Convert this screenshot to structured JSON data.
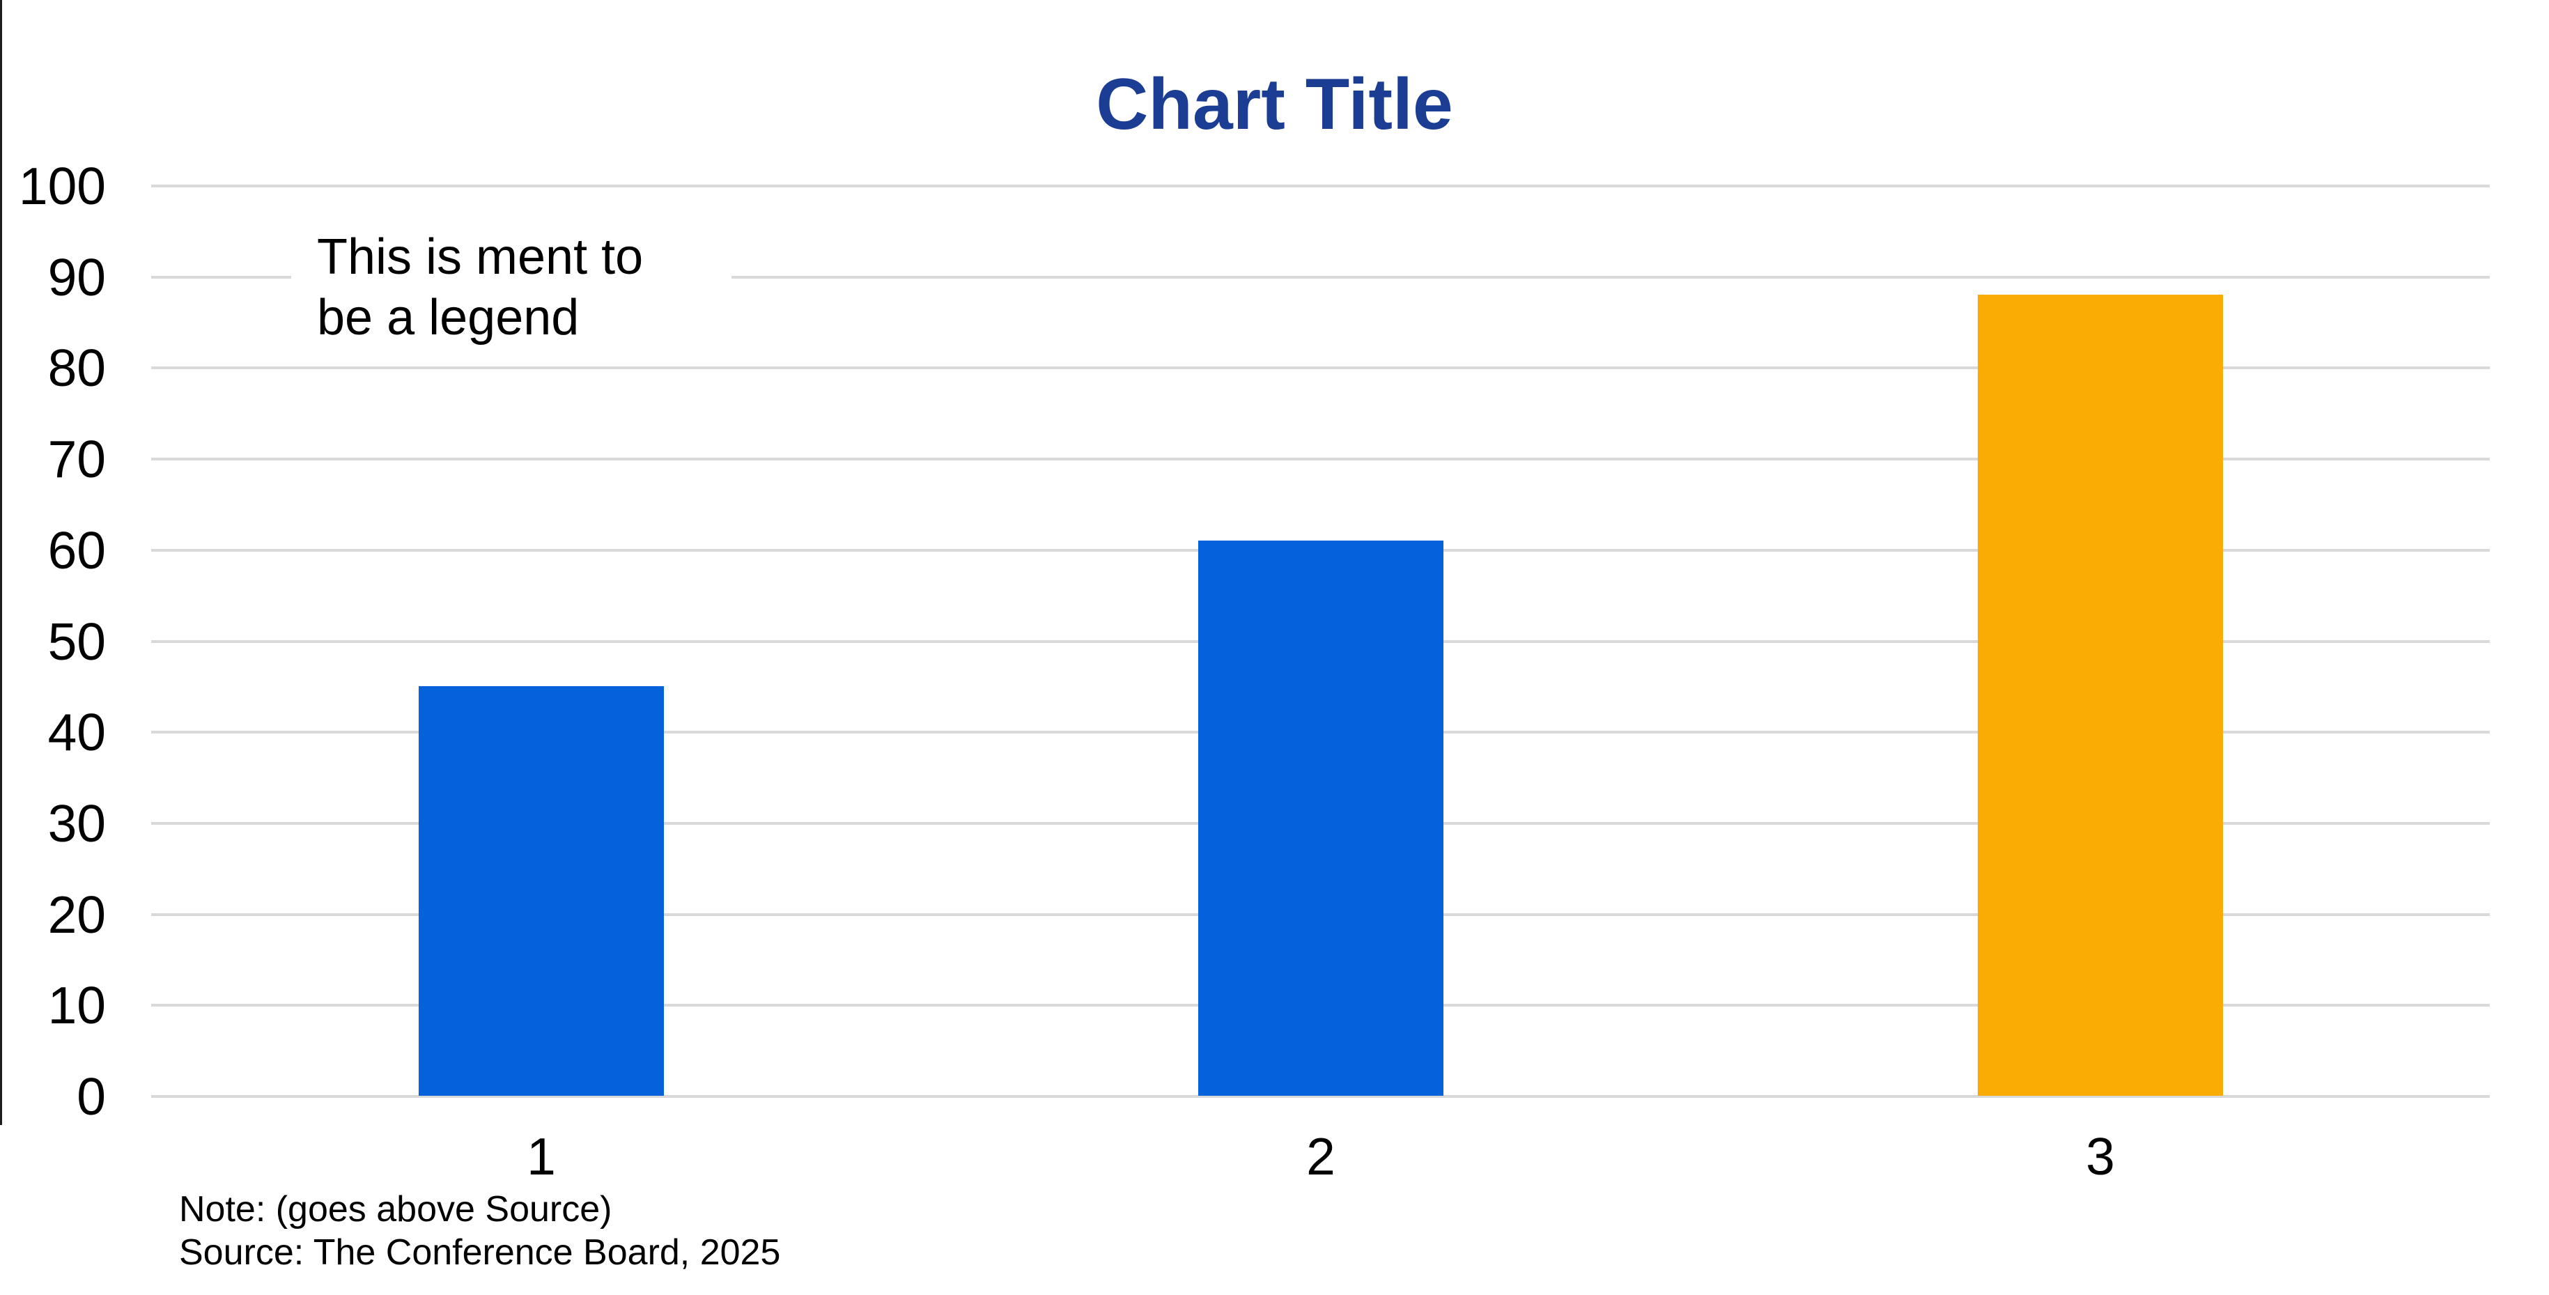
{
  "title": {
    "text": "Chart Title",
    "color": "#1B3E94"
  },
  "legend": {
    "line1": "This is ment to",
    "line2": "be a legend"
  },
  "notes": {
    "note": "Note: (goes above Source)",
    "source": "Source: The Conference Board, 2025"
  },
  "colors": {
    "bar_blue": "#0562DB",
    "bar_orange": "#FAAC05",
    "gridline": "#D9D9D9",
    "title_navy": "#1B3E94",
    "text_black": "#000000",
    "left_border": "#1e1e1e"
  },
  "chart_data": {
    "type": "bar",
    "title": "Chart Title",
    "categories": [
      "1",
      "2",
      "3"
    ],
    "values": [
      45,
      61,
      88
    ],
    "bar_colors": [
      "#0562DB",
      "#0562DB",
      "#FAAC05"
    ],
    "xlabel": "",
    "ylabel": "",
    "ylim": [
      0,
      100
    ],
    "yticks": [
      0,
      10,
      20,
      30,
      40,
      50,
      60,
      70,
      80,
      90,
      100
    ],
    "grid": true,
    "legend_text": "This is ment to be a legend",
    "legend_position": "upper-left-inside",
    "annotations": [
      "Note: (goes above Source)",
      "Source: The Conference Board, 2025"
    ]
  }
}
